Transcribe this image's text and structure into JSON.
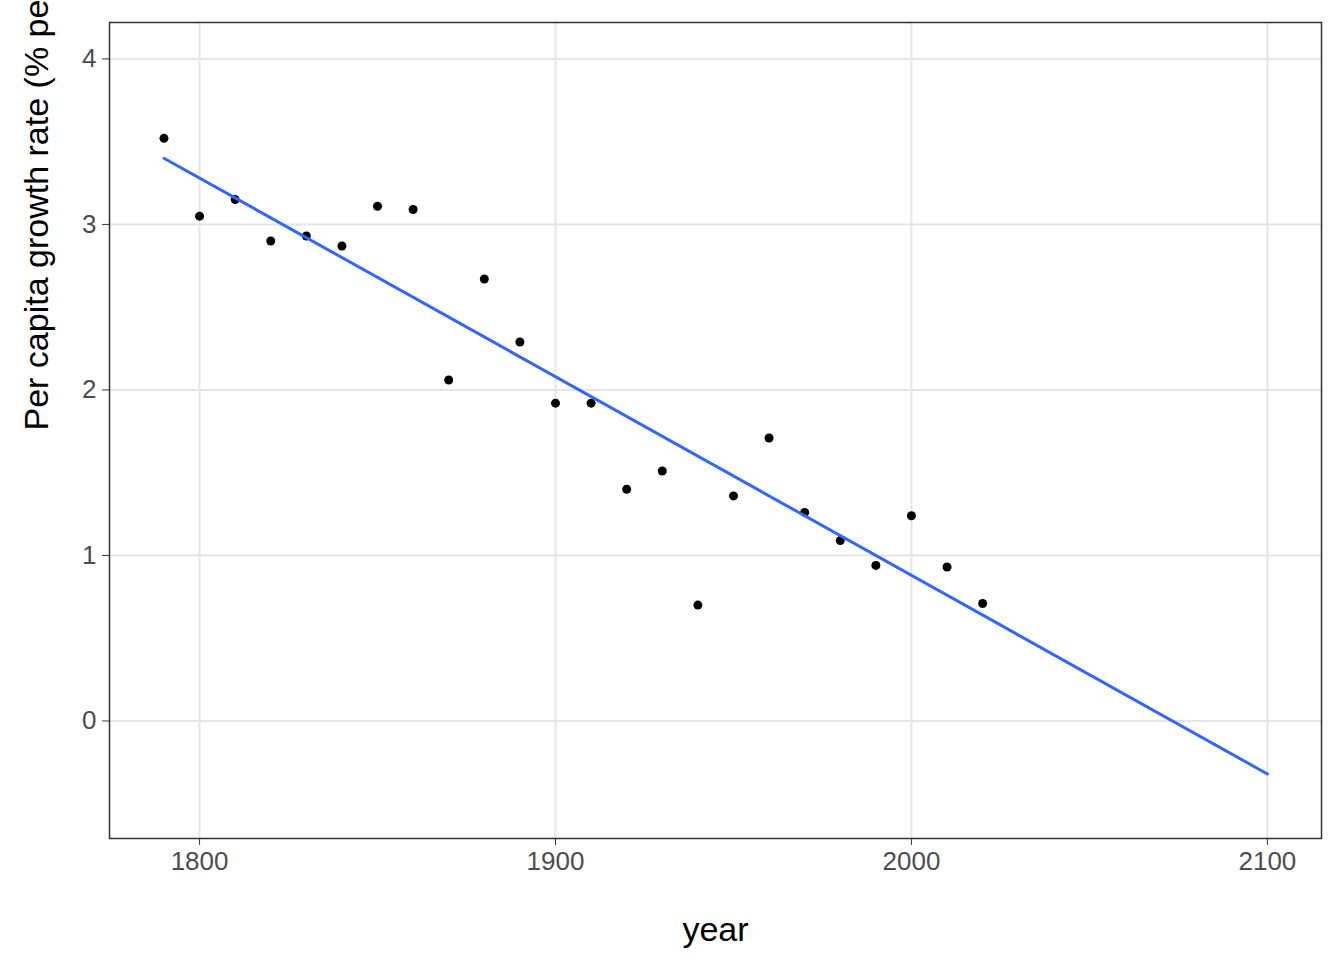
{
  "chart_data": {
    "type": "scatter",
    "xlabel": "year",
    "ylabel": "Per capita growth rate (% per year)",
    "xlim": [
      1774.7,
      2115.2
    ],
    "ylim": [
      -0.71,
      4.22
    ],
    "xticks": [
      1800,
      1900,
      2000,
      2100
    ],
    "yticks": [
      0,
      1,
      2,
      3,
      4
    ],
    "grid": true,
    "series": [
      {
        "type": "scatter",
        "color": "#000000",
        "marker": "circle",
        "x": [
          1790,
          1800,
          1810,
          1820,
          1830,
          1840,
          1850,
          1860,
          1870,
          1880,
          1890,
          1900,
          1910,
          1920,
          1930,
          1940,
          1950,
          1960,
          1970,
          1980,
          1990,
          2000,
          2010,
          2020
        ],
        "values": [
          3.52,
          3.05,
          3.15,
          2.9,
          2.93,
          2.87,
          3.11,
          3.09,
          2.06,
          2.67,
          2.29,
          1.92,
          1.92,
          1.4,
          1.51,
          0.7,
          1.36,
          1.71,
          1.26,
          1.09,
          0.94,
          1.24,
          0.93,
          0.71
        ]
      },
      {
        "type": "line",
        "color": "#3366ff",
        "line_style": "solid",
        "x": [
          1790,
          2100
        ],
        "values": [
          3.4,
          -0.32
        ]
      }
    ]
  }
}
